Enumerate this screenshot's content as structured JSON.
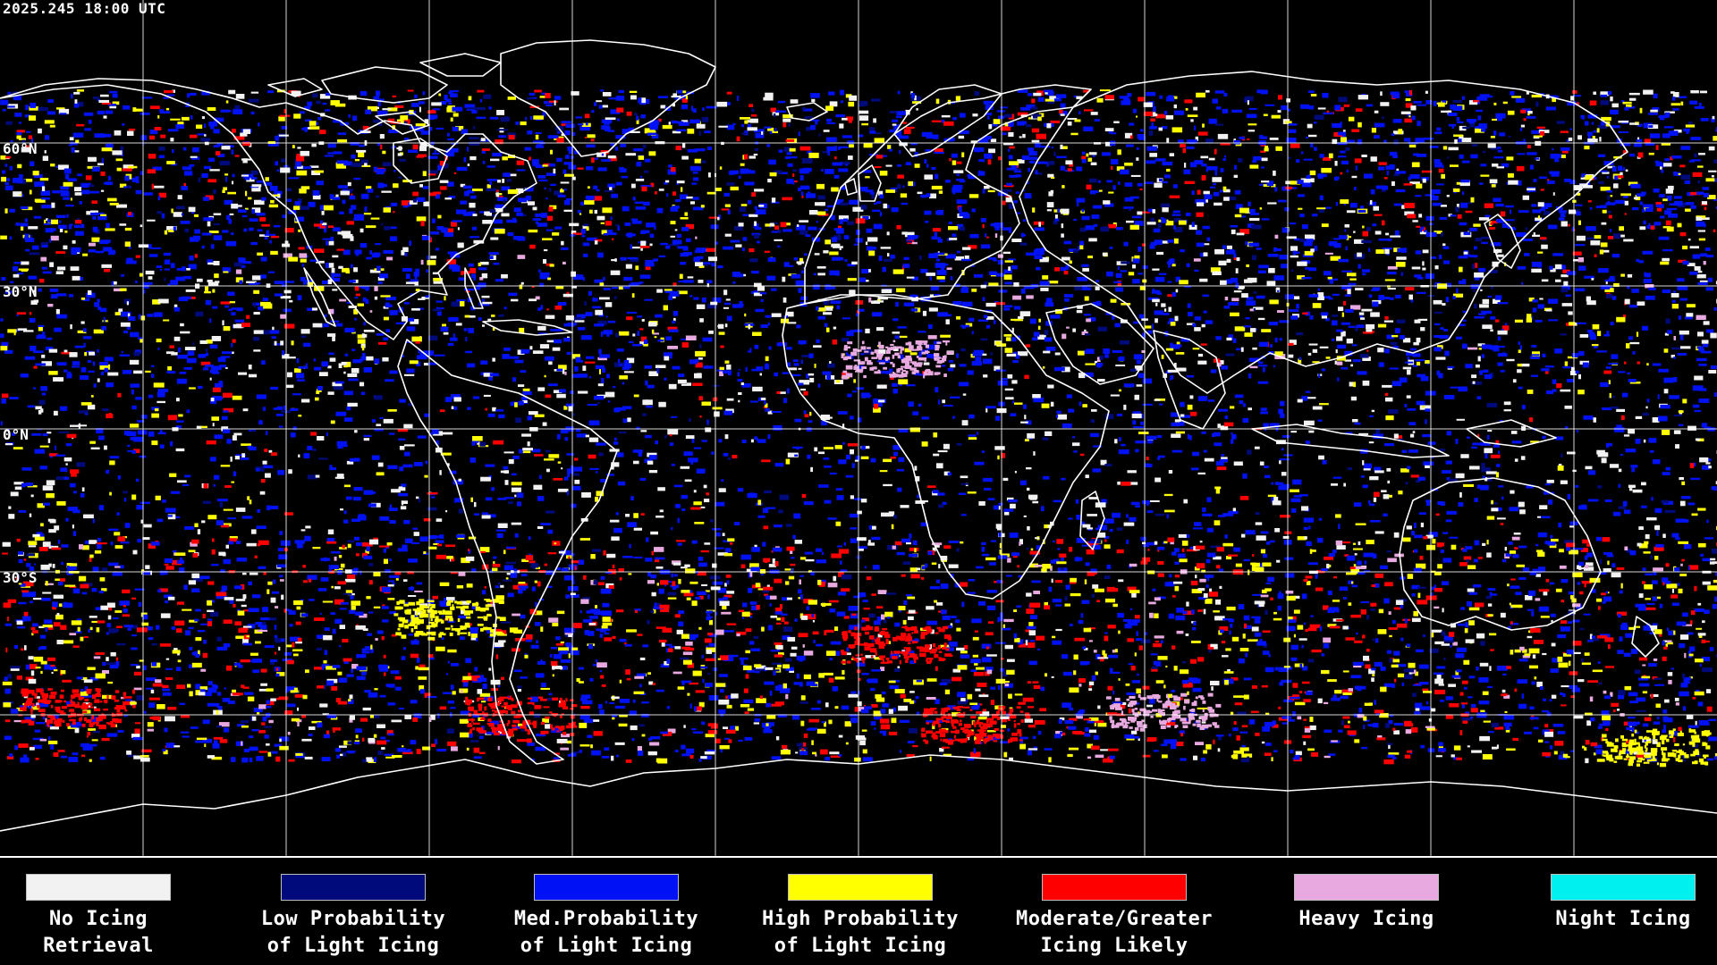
{
  "timestamp": "2025.245 18:00 UTC",
  "lat_labels": [
    {
      "text": "60°N",
      "lat": 60
    },
    {
      "text": "30°N",
      "lat": 30
    },
    {
      "text": "0°N",
      "lat": 0
    },
    {
      "text": "30°S",
      "lat": -30
    }
  ],
  "colors": {
    "background": "#000000",
    "grid": "#ffffff",
    "coastline": "#ffffff",
    "no_icing": "#f2f2f2",
    "low_prob": "#000a7a",
    "med_prob": "#0012f5",
    "high_prob": "#ffff00",
    "moderate": "#ff0000",
    "heavy": "#e8a8e0",
    "night": "#00f0f0"
  },
  "legend": [
    {
      "line1": "No Icing",
      "line2": "Retrieval",
      "color": "#f2f2f2"
    },
    {
      "line1": "Low Probability",
      "line2": "of Light Icing",
      "color": "#000a7a"
    },
    {
      "line1": "Med.Probability",
      "line2": "of Light Icing",
      "color": "#0012f5"
    },
    {
      "line1": "High Probability",
      "line2": "of Light Icing",
      "color": "#ffff00"
    },
    {
      "line1": "Moderate/Greater",
      "line2": "Icing Likely",
      "color": "#ff0000"
    },
    {
      "line1": "Heavy Icing",
      "line2": "",
      "color": "#e8a8e0"
    },
    {
      "line1": "Night Icing",
      "line2": "",
      "color": "#00f0f0"
    }
  ]
}
